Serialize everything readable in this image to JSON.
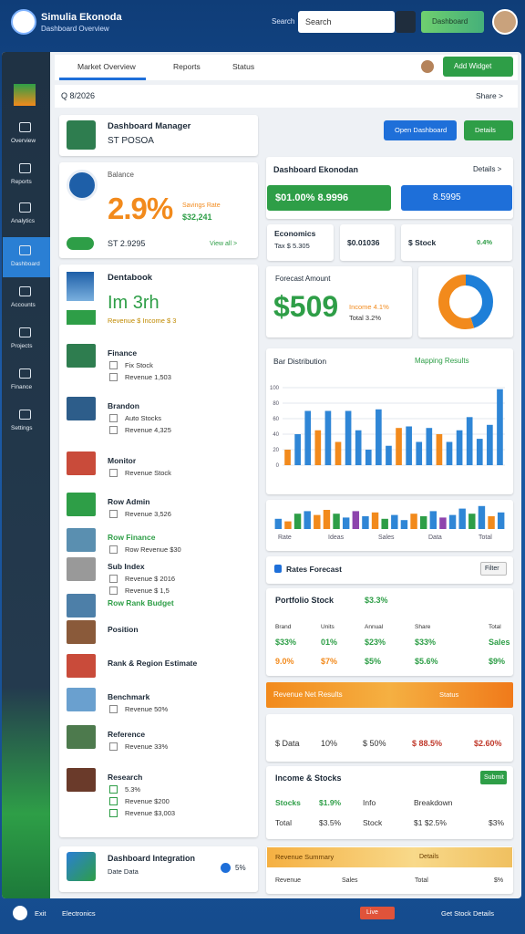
{
  "header": {
    "title": "Simulia Ekonoda",
    "subtitle": "Dashboard Overview",
    "search_label": "Search",
    "search_placeholder": "Search",
    "button": "Dashboard"
  },
  "sidebar": [
    "Overview",
    "Reports",
    "Analytics",
    "Dashboard",
    "Accounts",
    "Projects",
    "Finance",
    "Settings"
  ],
  "tabs": [
    "Market Overview",
    "Reports",
    "Status"
  ],
  "tab_button": "Add Widget",
  "breadcrumb": "Q 8/2026",
  "share": "Share >",
  "profile": {
    "title": "Dashboard Manager",
    "subtitle": "ST POSOA"
  },
  "stat": {
    "label": "Balance",
    "value": "2.9%",
    "side_label": "Savings Rate",
    "side_value": "$32,241",
    "footer": "ST 2.9295",
    "link": "View all >"
  },
  "company": {
    "title": "Dentabook",
    "value": "Im 3rh",
    "sub": "Revenue  $ Income  $ 3"
  },
  "items": [
    {
      "title": "Finance",
      "lines": [
        "Fix Stock",
        "Revenue 1,503"
      ]
    },
    {
      "title": "Brandon",
      "lines": [
        "Auto Stocks",
        "Revenue 4,325"
      ]
    },
    {
      "title": "Monitor",
      "lines": [
        "Revenue Stock"
      ]
    },
    {
      "title": "Row Admin",
      "lines": [
        "Revenue 3,526"
      ]
    },
    {
      "title": "Row Finance",
      "lines": [
        "Row Revenue $30"
      ]
    },
    {
      "title": "Sub Index",
      "lines": [
        "Revenue $ 2016",
        "Revenue $ 1,5"
      ]
    },
    {
      "title": "Row Rank Budget",
      "lines": []
    },
    {
      "title": "Position",
      "lines": []
    },
    {
      "title": "Rank & Region Estimate",
      "lines": []
    },
    {
      "title": "Benchmark",
      "lines": [
        "Revenue 50%"
      ]
    },
    {
      "title": "Reference",
      "lines": [
        "Revenue 33%"
      ]
    },
    {
      "title": "Research",
      "lines": [
        "5.3%",
        "Revenue $200",
        "Revenue $3,003"
      ]
    }
  ],
  "integration": {
    "title": "Dashboard Integration",
    "sub": "Date Data",
    "value": "5%"
  },
  "actions": [
    "Open Dashboard",
    "Details"
  ],
  "summary": {
    "title": "Dashboard Ekonodan",
    "link": "Details >",
    "green": "$01.00%  8.9996",
    "blue": "8.5995"
  },
  "mini_stats": [
    [
      "Economics",
      "Tax $ 5.305"
    ],
    [
      "$0.01036"
    ],
    [
      "$ Stock",
      "0.4%"
    ]
  ],
  "forecast": {
    "title": "Forecast Amount",
    "value": "$509",
    "side": [
      "Income 4.1%",
      "Total 3.2%"
    ]
  },
  "donut": {
    "values": [
      45,
      55
    ],
    "colors": [
      "#1e7fd8",
      "#f28a1c"
    ]
  },
  "bar_chart": {
    "title": "Bar Distribution",
    "legend": "Mapping Results",
    "ylim": [
      0,
      100
    ],
    "yticks": [
      0,
      20,
      40,
      60,
      80,
      100
    ],
    "values": [
      20,
      40,
      70,
      45,
      70,
      30,
      70,
      45,
      20,
      72,
      25,
      48,
      50,
      30,
      48,
      40,
      30,
      45,
      62,
      34,
      52,
      98
    ],
    "colors": [
      "#f28a1c",
      "#2f86d6",
      "#2f86d6",
      "#f28a1c",
      "#2f86d6",
      "#f28a1c",
      "#2f86d6",
      "#2f86d6",
      "#2f86d6",
      "#2f86d6",
      "#2f86d6",
      "#f28a1c",
      "#2f86d6",
      "#2f86d6",
      "#2f86d6",
      "#f28a1c",
      "#2f86d6",
      "#2f86d6",
      "#2f86d6",
      "#2f86d6",
      "#2f86d6",
      "#2f86d6"
    ]
  },
  "mini_chart": {
    "values": [
      40,
      30,
      60,
      70,
      55,
      75,
      60,
      45,
      70,
      50,
      65,
      40,
      55,
      35,
      60,
      50,
      70,
      45,
      55,
      80,
      60,
      90,
      50,
      65
    ],
    "colors": [
      "#2f86d6",
      "#f28a1c",
      "#2e9e47",
      "#2f86d6",
      "#f28a1c",
      "#f28a1c",
      "#2e9e47",
      "#2f86d6",
      "#8e44ad",
      "#2f86d6",
      "#f28a1c",
      "#2e9e47",
      "#2f86d6",
      "#2f86d6",
      "#f28a1c",
      "#2e9e47",
      "#2f86d6",
      "#8e44ad",
      "#2f86d6",
      "#2f86d6",
      "#2e9e47",
      "#2f86d6",
      "#f28a1c",
      "#2f86d6"
    ],
    "labels": [
      "Rate",
      "Ideas",
      "Sales",
      "Data",
      "Total"
    ]
  },
  "rates": {
    "title": "Rates Forecast",
    "button": "Filter"
  },
  "portfolio": {
    "title": "Portfolio Stock",
    "change": "$3.3%",
    "columns": [
      "Brand",
      "Units",
      "Annual",
      "Share",
      "Total"
    ],
    "rows": [
      [
        "$33%",
        "01%",
        "$23%",
        "$33%",
        "Sales"
      ],
      [
        "9.0%",
        "$7%",
        "$5%",
        "$5.6%",
        "$9%"
      ]
    ]
  },
  "revenue_bar": {
    "title": "Revenue Net Results",
    "status": "Status"
  },
  "revenue_row": [
    "$ Data",
    "10%",
    "$ 50%",
    "$ 88.5%",
    "$2.60%"
  ],
  "income": {
    "title": "Income & Stocks",
    "button": "Submit",
    "rows": [
      [
        "Stocks",
        "$1.9%",
        "Info",
        "Breakdown"
      ],
      [
        "Total",
        "$3.5%",
        "Stock",
        "$1 $2.5%",
        "$3%"
      ]
    ]
  },
  "summary2": {
    "title": "Revenue Summary",
    "status": "Details",
    "row": [
      "Revenue",
      "Sales",
      "Total",
      "$%"
    ]
  },
  "footer": {
    "left": [
      "Exit",
      "Electronics"
    ],
    "badge": "Live",
    "right": "Get Stock Details"
  }
}
